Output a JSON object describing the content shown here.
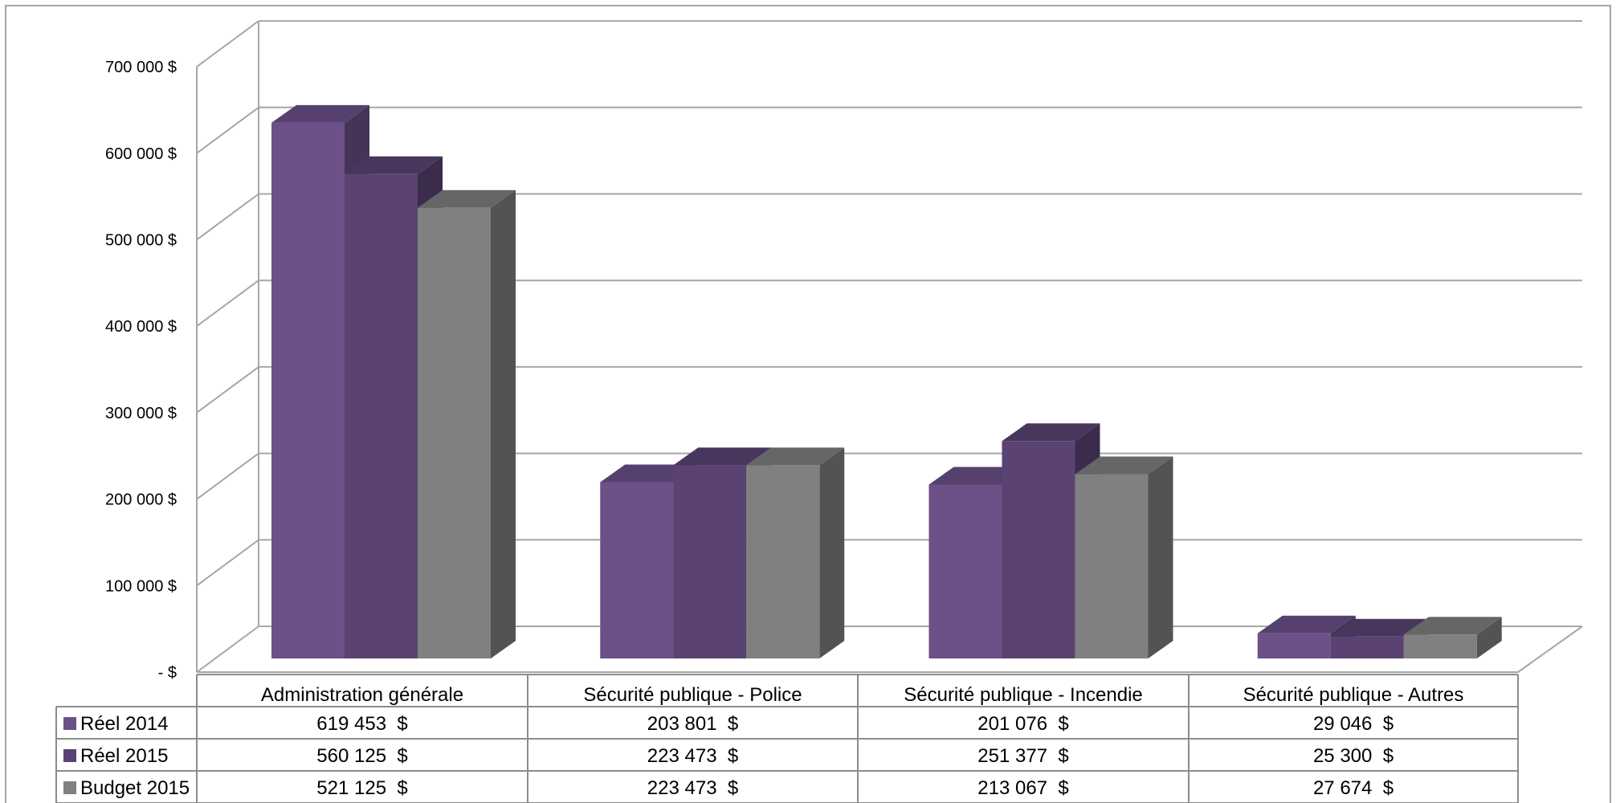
{
  "chart_data": {
    "type": "bar",
    "categories": [
      "Administration générale",
      "Sécurité publique - Police",
      "Sécurité publique - Incendie",
      "Sécurité publique - Autres"
    ],
    "series": [
      {
        "name": "Réel 2014",
        "values": [
          619453,
          203801,
          201076,
          29046
        ],
        "labels": [
          "619 453  $",
          "203 801  $",
          "201 076  $",
          "29 046  $"
        ],
        "color": "#6c5088"
      },
      {
        "name": "Réel 2015",
        "values": [
          560125,
          223473,
          251377,
          25300
        ],
        "labels": [
          "560 125  $",
          "223 473  $",
          "251 377  $",
          "25 300  $"
        ],
        "color": "#5a4373"
      },
      {
        "name": "Budget 2015",
        "values": [
          521125,
          223473,
          213067,
          27674
        ],
        "labels": [
          "521 125  $",
          "223 473  $",
          "213 067  $",
          "27 674  $"
        ],
        "color": "#808080"
      }
    ],
    "y_ticks": [
      {
        "value": 0,
        "label": "-  $"
      },
      {
        "value": 100000,
        "label": "100 000  $"
      },
      {
        "value": 200000,
        "label": "200 000  $"
      },
      {
        "value": 300000,
        "label": "300 000  $"
      },
      {
        "value": 400000,
        "label": "400 000  $"
      },
      {
        "value": 500000,
        "label": "500 000  $"
      },
      {
        "value": 600000,
        "label": "600 000  $"
      },
      {
        "value": 700000,
        "label": "700 000  $"
      }
    ],
    "ylim": [
      0,
      700000
    ],
    "grid": true,
    "style": "3d-clustered-column",
    "legend": "data-table"
  }
}
